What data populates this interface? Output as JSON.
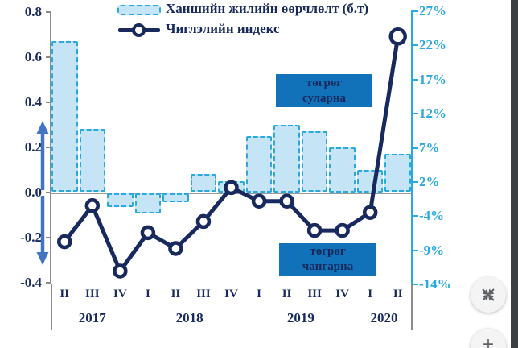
{
  "chart_data": {
    "type": "bar",
    "categories": [
      "II",
      "III",
      "IV",
      "I",
      "II",
      "III",
      "IV",
      "I",
      "II",
      "III",
      "IV",
      "I",
      "II"
    ],
    "year_groups": [
      {
        "label": "2017",
        "count": 3
      },
      {
        "label": "2018",
        "count": 4
      },
      {
        "label": "2019",
        "count": 4
      },
      {
        "label": "2020",
        "count": 2
      }
    ],
    "series": [
      {
        "name": "Ханшийн жилийн өөрчлөлт (б.т)",
        "type": "bar",
        "values": [
          0.67,
          0.28,
          -0.06,
          -0.09,
          -0.04,
          0.08,
          0.05,
          0.25,
          0.3,
          0.27,
          0.2,
          0.1,
          0.17
        ]
      },
      {
        "name": "Чиглэлийн индекс",
        "type": "line",
        "values": [
          -0.22,
          -0.06,
          -0.35,
          -0.18,
          -0.25,
          -0.13,
          0.02,
          -0.04,
          -0.04,
          -0.17,
          -0.17,
          -0.09,
          0.69
        ]
      }
    ],
    "left_axis": {
      "ticks": [
        "0.8",
        "0.6",
        "0.4",
        "0.2",
        "0.0",
        "-0.2",
        "-0.4"
      ],
      "min": -0.4,
      "max": 0.8
    },
    "right_axis": {
      "ticks": [
        "27%",
        "22%",
        "17%",
        "12%",
        "7%",
        "2%",
        "-4%",
        "-9%",
        "-14%"
      ]
    },
    "annotations": [
      {
        "line1": "төгрөг",
        "line2": "суларна"
      },
      {
        "line1": "төгрөг",
        "line2": "чангарна"
      }
    ],
    "legend_position": "top",
    "grid": false,
    "colors": {
      "bar_fill": "#c5e5f6",
      "bar_border": "#2aa9e0",
      "line": "#17295d",
      "right_axis": "#29a9e1",
      "annotation_bg": "#1171b9",
      "arrow": "#4374c4",
      "axis_gray": "#8c8c8c"
    }
  },
  "overlay": {
    "zoom_in_glyph": "+"
  }
}
